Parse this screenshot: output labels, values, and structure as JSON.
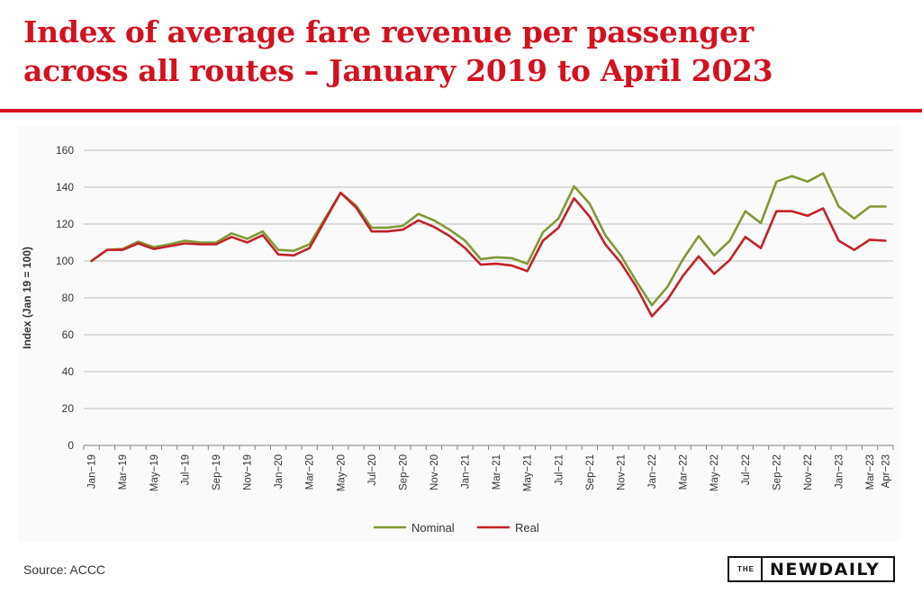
{
  "headline": {
    "line1": "Index of average fare revenue per passenger",
    "line2": "across all routes – January 2019 to April 2023"
  },
  "source": "Source: ACCC",
  "logo": {
    "the": "THE",
    "name": "NEWDAILY"
  },
  "colors": {
    "accent": "#d4111f",
    "nominal": "#7f9a35",
    "real": "#c42127"
  },
  "chart_data": {
    "type": "line",
    "ylabel": "Index (Jan 19 = 100)",
    "xlabel": "",
    "ylim": [
      0,
      160
    ],
    "yticks": [
      0,
      20,
      40,
      60,
      80,
      100,
      120,
      140,
      160
    ],
    "grid": true,
    "legend_position": "bottom",
    "x": [
      "Jan-19",
      "Feb-19",
      "Mar-19",
      "Apr-19",
      "May-19",
      "Jun-19",
      "Jul-19",
      "Aug-19",
      "Sep-19",
      "Oct-19",
      "Nov-19",
      "Dec-19",
      "Jan-20",
      "Feb-20",
      "Mar-20",
      "Apr-20",
      "May-20",
      "Jun-20",
      "Jul-20",
      "Aug-20",
      "Sep-20",
      "Oct-20",
      "Nov-20",
      "Dec-20",
      "Jan-21",
      "Feb-21",
      "Mar-21",
      "Apr-21",
      "May-21",
      "Jun-21",
      "Jul-21",
      "Aug-21",
      "Sep-21",
      "Oct-21",
      "Nov-21",
      "Dec-21",
      "Jan-22",
      "Feb-22",
      "Mar-22",
      "Apr-22",
      "May-22",
      "Jun-22",
      "Jul-22",
      "Aug-22",
      "Sep-22",
      "Oct-22",
      "Nov-22",
      "Dec-22",
      "Jan-23",
      "Feb-23",
      "Mar-23",
      "Apr-23"
    ],
    "tick_labels": [
      "Jan−19",
      "Mar−19",
      "May−19",
      "Jul−19",
      "Sep−19",
      "Nov−19",
      "Jan−20",
      "Mar−20",
      "May−20",
      "Jul−20",
      "Sep−20",
      "Nov−20",
      "Jan−21",
      "Mar−21",
      "May−21",
      "Jul−21",
      "Sep−21",
      "Nov−21",
      "Jan−22",
      "Mar−22",
      "May−22",
      "Jul−22",
      "Sep−22",
      "Nov−22",
      "Jan−23",
      "Mar−23",
      "Apr−23"
    ],
    "series": [
      {
        "name": "Nominal",
        "color": "#7f9a35",
        "values": [
          100,
          106,
          106.5,
          110.5,
          107.5,
          109,
          111,
          110,
          110,
          115,
          112,
          116,
          106,
          105.5,
          109,
          123,
          137,
          130,
          118,
          118,
          119,
          125.5,
          122,
          117,
          111,
          101,
          102,
          101.5,
          98.5,
          115.5,
          123,
          140.5,
          131,
          114,
          103,
          89,
          76,
          86,
          101,
          113.5,
          103,
          111,
          127,
          120.5,
          143,
          146,
          143,
          147.5,
          129.5,
          123,
          129.5,
          129.5
        ]
      },
      {
        "name": "Real",
        "color": "#c42127",
        "values": [
          100,
          106,
          106,
          109.5,
          106.5,
          108,
          109.5,
          109,
          109,
          113,
          110,
          114,
          103.5,
          103,
          107,
          122,
          137,
          129,
          116,
          116,
          117,
          122,
          118.5,
          113.5,
          107,
          98,
          98.5,
          97.5,
          94.5,
          111,
          118,
          134,
          124,
          109,
          99,
          86,
          70,
          79,
          92,
          102.5,
          93,
          100.5,
          113,
          107,
          127,
          127,
          124.5,
          128.5,
          111,
          106,
          111.5,
          111
        ]
      }
    ]
  }
}
